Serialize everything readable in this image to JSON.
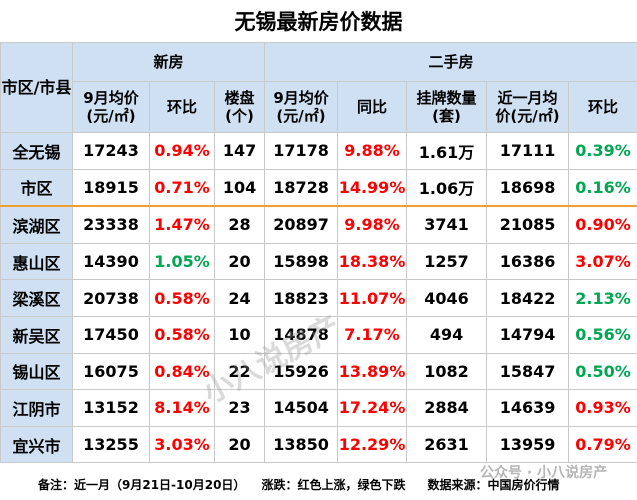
{
  "title": "无锡最新房价数据",
  "header": {
    "region": "市区/市县",
    "new_group": "新房",
    "second_group": "二手房",
    "new_price_l1": "9月均价",
    "new_price_l2": "(元/㎡)",
    "new_mom": "环比",
    "projects_l1": "楼盘",
    "projects_l2": "(个)",
    "sec_price_l1": "9月均价",
    "sec_price_l2": "(元/㎡)",
    "sec_yoy": "同比",
    "listings_l1": "挂牌数量",
    "listings_l2": "(套)",
    "recent_l1": "近一月均",
    "recent_l2": "价(元/㎡)",
    "sec_mom": "环比"
  },
  "colors": {
    "up": "#ff0000",
    "down": "#00a651",
    "header_bg": "#cfe0f3"
  },
  "rows": [
    {
      "region": "全无锡",
      "new_price": "17243",
      "new_mom": "0.94%",
      "new_mom_dir": "up",
      "projects": "147",
      "sec_price": "17178",
      "sec_yoy": "9.88%",
      "sec_yoy_dir": "up",
      "listings": "1.61万",
      "recent": "17111",
      "sec_mom": "0.39%",
      "sec_mom_dir": "down"
    },
    {
      "region": "市区",
      "new_price": "18915",
      "new_mom": "0.71%",
      "new_mom_dir": "up",
      "projects": "104",
      "sec_price": "18728",
      "sec_yoy": "14.99%",
      "sec_yoy_dir": "up",
      "listings": "1.06万",
      "recent": "18698",
      "sec_mom": "0.16%",
      "sec_mom_dir": "down"
    },
    {
      "region": "滨湖区",
      "new_price": "23338",
      "new_mom": "1.47%",
      "new_mom_dir": "up",
      "projects": "28",
      "sec_price": "20897",
      "sec_yoy": "9.98%",
      "sec_yoy_dir": "up",
      "listings": "3741",
      "recent": "21085",
      "sec_mom": "0.90%",
      "sec_mom_dir": "up"
    },
    {
      "region": "惠山区",
      "new_price": "14390",
      "new_mom": "1.05%",
      "new_mom_dir": "down",
      "projects": "20",
      "sec_price": "15898",
      "sec_yoy": "18.38%",
      "sec_yoy_dir": "up",
      "listings": "1257",
      "recent": "16386",
      "sec_mom": "3.07%",
      "sec_mom_dir": "up"
    },
    {
      "region": "梁溪区",
      "new_price": "20738",
      "new_mom": "0.58%",
      "new_mom_dir": "up",
      "projects": "24",
      "sec_price": "18823",
      "sec_yoy": "11.07%",
      "sec_yoy_dir": "up",
      "listings": "4046",
      "recent": "18422",
      "sec_mom": "2.13%",
      "sec_mom_dir": "down"
    },
    {
      "region": "新吴区",
      "new_price": "17450",
      "new_mom": "0.58%",
      "new_mom_dir": "up",
      "projects": "10",
      "sec_price": "14878",
      "sec_yoy": "7.17%",
      "sec_yoy_dir": "up",
      "listings": "494",
      "recent": "14794",
      "sec_mom": "0.56%",
      "sec_mom_dir": "down"
    },
    {
      "region": "锡山区",
      "new_price": "16075",
      "new_mom": "0.84%",
      "new_mom_dir": "up",
      "projects": "22",
      "sec_price": "15926",
      "sec_yoy": "13.89%",
      "sec_yoy_dir": "up",
      "listings": "1082",
      "recent": "15847",
      "sec_mom": "0.50%",
      "sec_mom_dir": "down"
    },
    {
      "region": "江阴市",
      "new_price": "13152",
      "new_mom": "8.14%",
      "new_mom_dir": "up",
      "projects": "23",
      "sec_price": "14504",
      "sec_yoy": "17.24%",
      "sec_yoy_dir": "up",
      "listings": "2884",
      "recent": "14639",
      "sec_mom": "0.93%",
      "sec_mom_dir": "up"
    },
    {
      "region": "宜兴市",
      "new_price": "13255",
      "new_mom": "3.03%",
      "new_mom_dir": "up",
      "projects": "20",
      "sec_price": "13850",
      "sec_yoy": "12.29%",
      "sec_yoy_dir": "up",
      "listings": "2631",
      "recent": "13959",
      "sec_mom": "0.79%",
      "sec_mom_dir": "up"
    }
  ],
  "footer": {
    "note": "备注：近一月（9月21日-10月20日）",
    "legend": "涨跌：红色上涨，绿色下跌",
    "source": "数据来源：中国房价行情"
  },
  "watermark": "小八说房产",
  "watermark2": "公众号 · 小八说房产"
}
